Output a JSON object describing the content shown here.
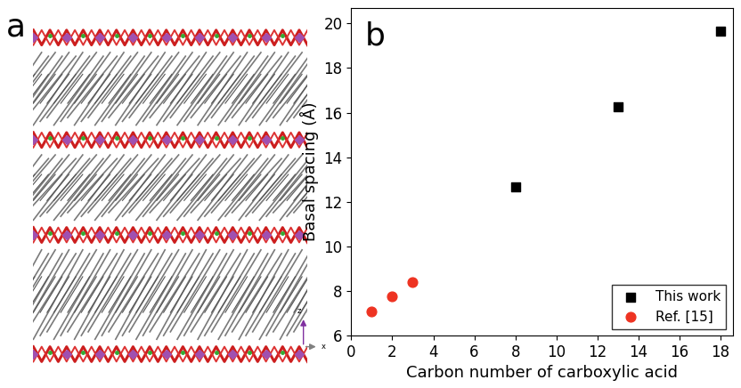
{
  "structure": {
    "panel_label": "a",
    "axis_labels": [
      "z",
      "x"
    ]
  },
  "chart_data": {
    "type": "scatter",
    "annotations": [
      "b"
    ],
    "x_label": "Carbon number of carboxylic acid",
    "y_label": "Basal spacing (Å)",
    "xlim": [
      0,
      18.6
    ],
    "xticks": [
      0,
      2,
      4,
      6,
      8,
      10,
      12,
      14,
      16,
      18
    ],
    "ylim": [
      6,
      20.7
    ],
    "yticks": [
      6,
      8,
      10,
      12,
      14,
      16,
      18,
      20
    ],
    "legend": "lower right",
    "series": [
      {
        "name": "This work",
        "color": "#000000",
        "marker": "square",
        "x": [
          8,
          13,
          18
        ],
        "values": [
          12.65,
          16.25,
          19.65
        ]
      },
      {
        "name": "Ref. [15]",
        "color": "#ee3322",
        "marker": "circle",
        "x": [
          1,
          2,
          3
        ],
        "values": [
          7.1,
          7.75,
          8.4
        ]
      }
    ]
  }
}
